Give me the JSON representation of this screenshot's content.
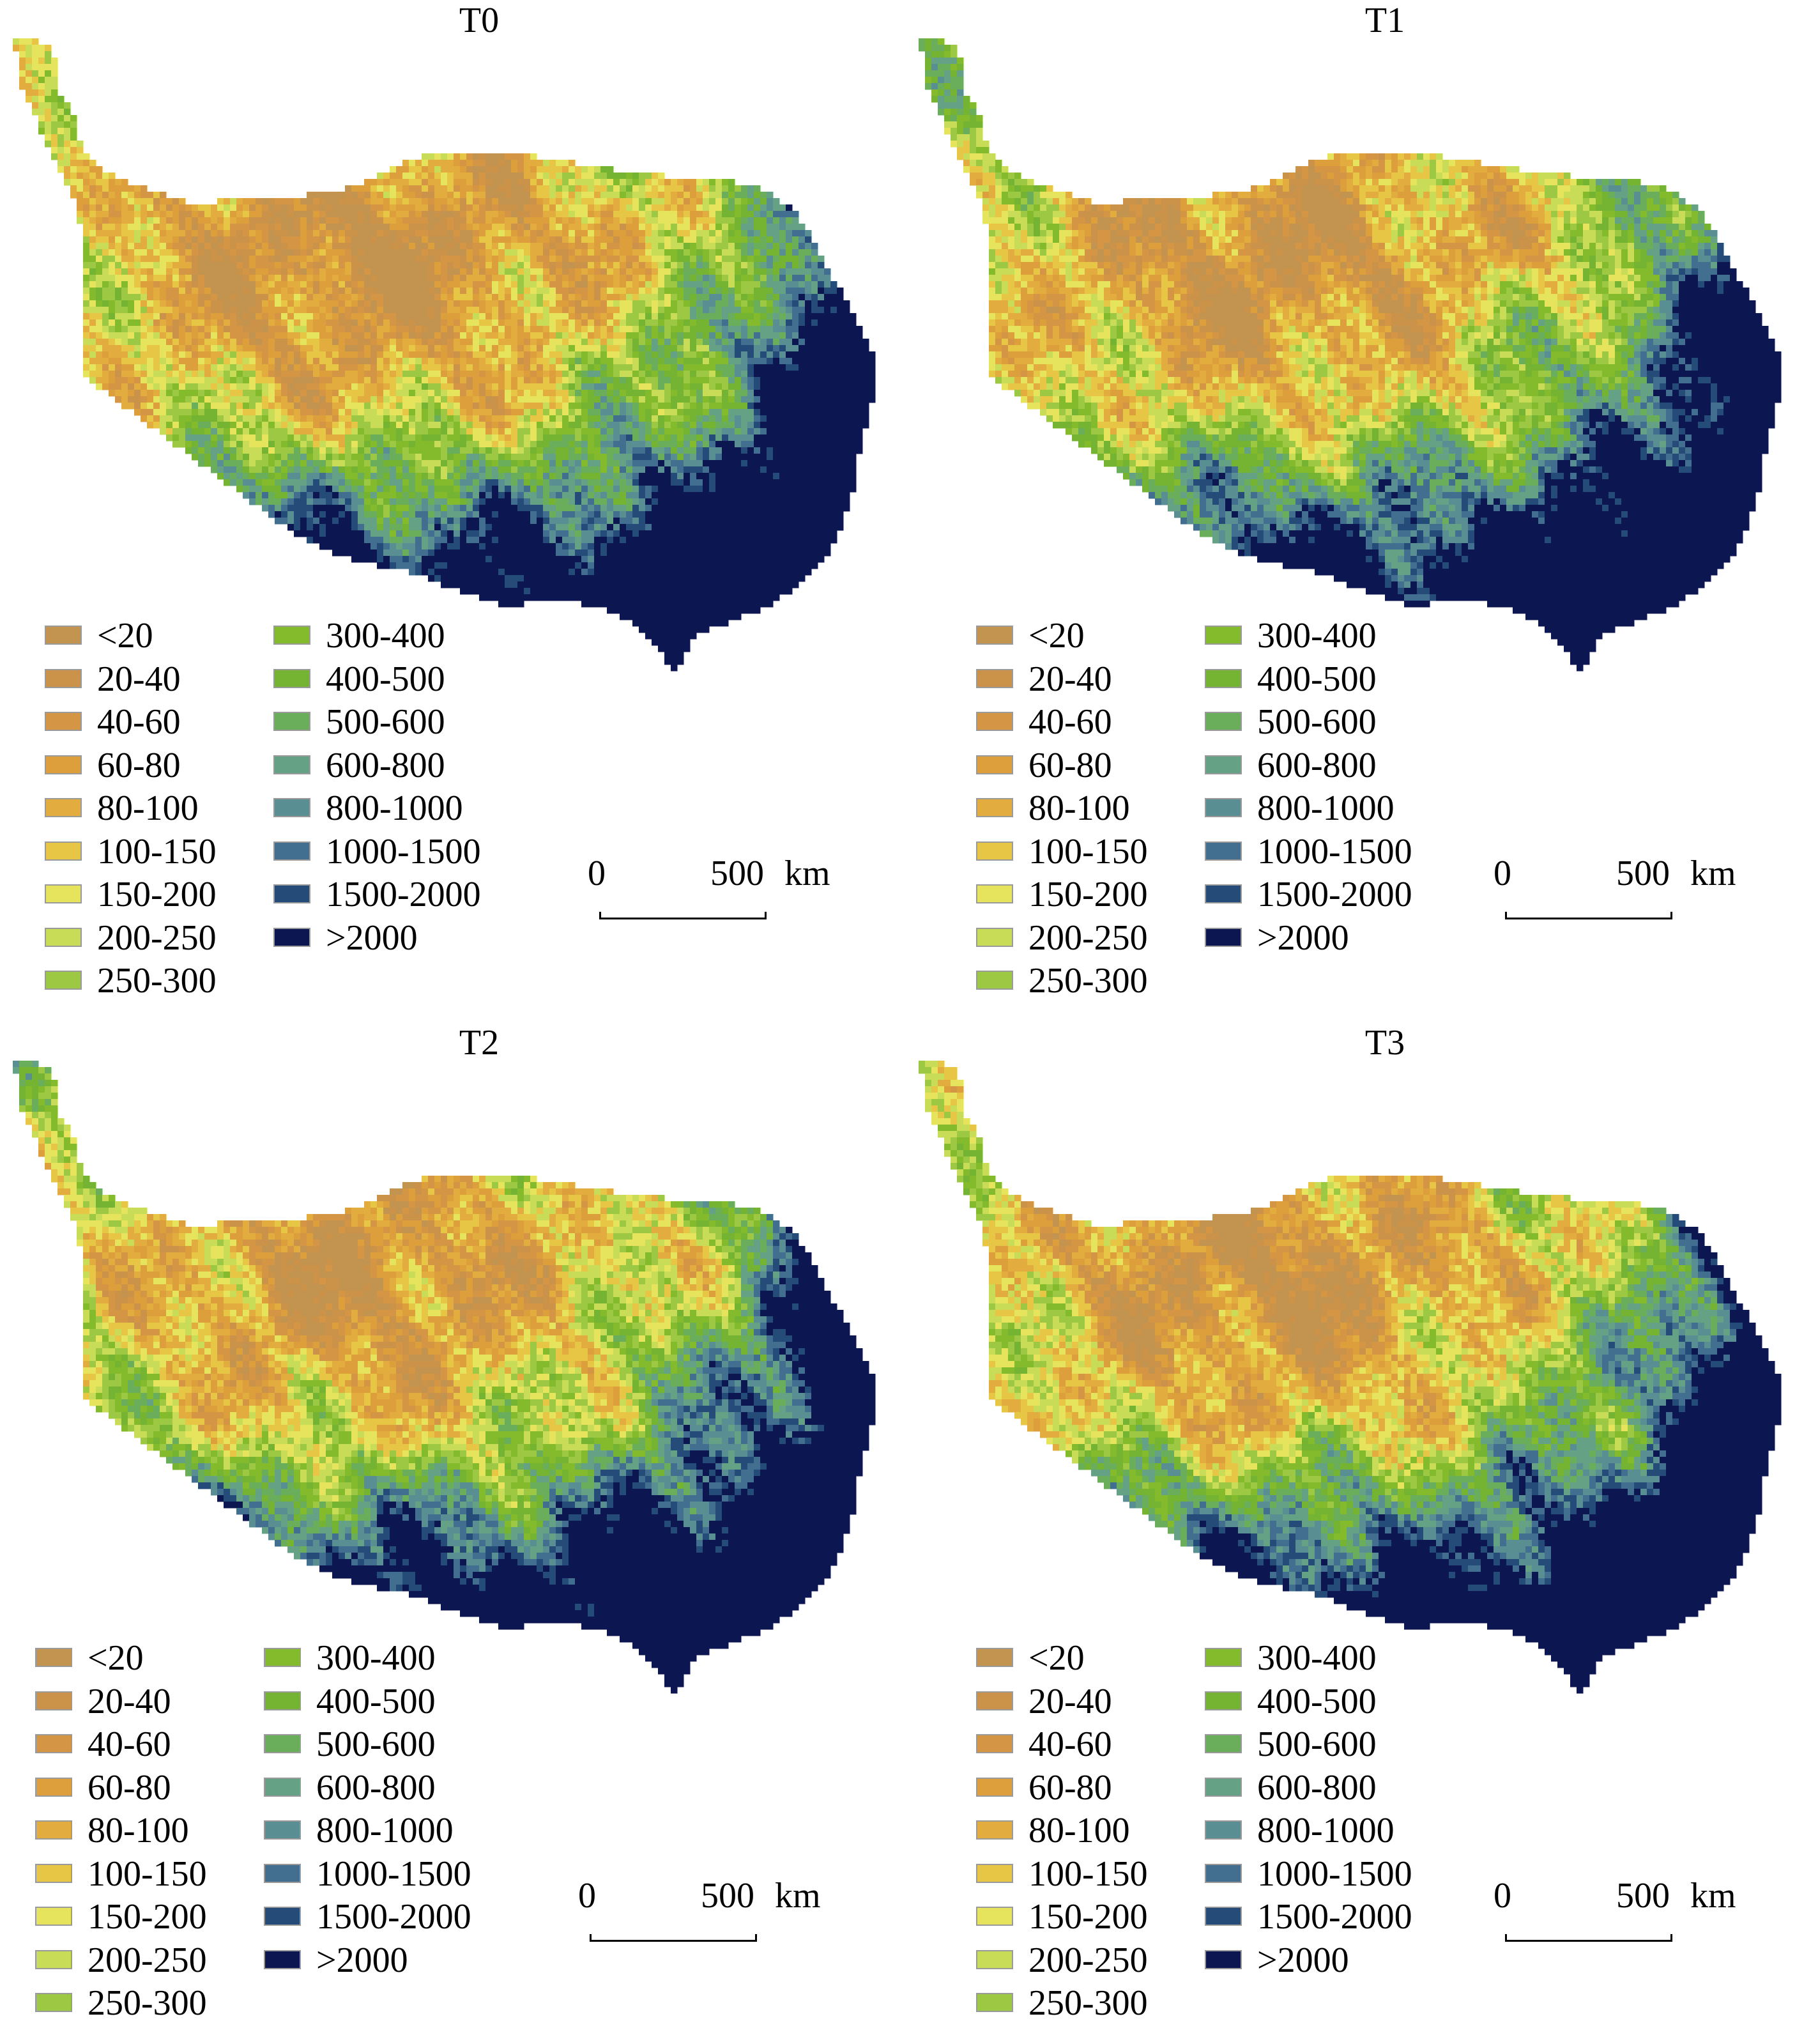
{
  "legend": [
    {
      "label": "<20",
      "color": "#c29450"
    },
    {
      "label": "20-40",
      "color": "#cb924a"
    },
    {
      "label": "40-60",
      "color": "#d49644"
    },
    {
      "label": "60-80",
      "color": "#dd9e3c"
    },
    {
      "label": "80-100",
      "color": "#e2ad3e"
    },
    {
      "label": "100-150",
      "color": "#e7c646"
    },
    {
      "label": "150-200",
      "color": "#e6e35c"
    },
    {
      "label": "200-250",
      "color": "#c8dc58"
    },
    {
      "label": "250-300",
      "color": "#9cc844"
    },
    {
      "label": "300-400",
      "color": "#83bb2c"
    },
    {
      "label": "400-500",
      "color": "#75b432"
    },
    {
      "label": "500-600",
      "color": "#6aad5b"
    },
    {
      "label": "600-800",
      "color": "#65a185"
    },
    {
      "label": "800-1000",
      "color": "#598f93"
    },
    {
      "label": "1000-1500",
      "color": "#426f90"
    },
    {
      "label": "1500-2000",
      "color": "#254c78"
    },
    {
      "label": ">2000",
      "color": "#0c1650"
    }
  ],
  "scale": {
    "zero": "0",
    "max": "500",
    "unit": "km"
  },
  "panels": [
    {
      "title": "T0"
    },
    {
      "title": "T1"
    },
    {
      "title": "T2"
    },
    {
      "title": "T3"
    }
  ]
}
